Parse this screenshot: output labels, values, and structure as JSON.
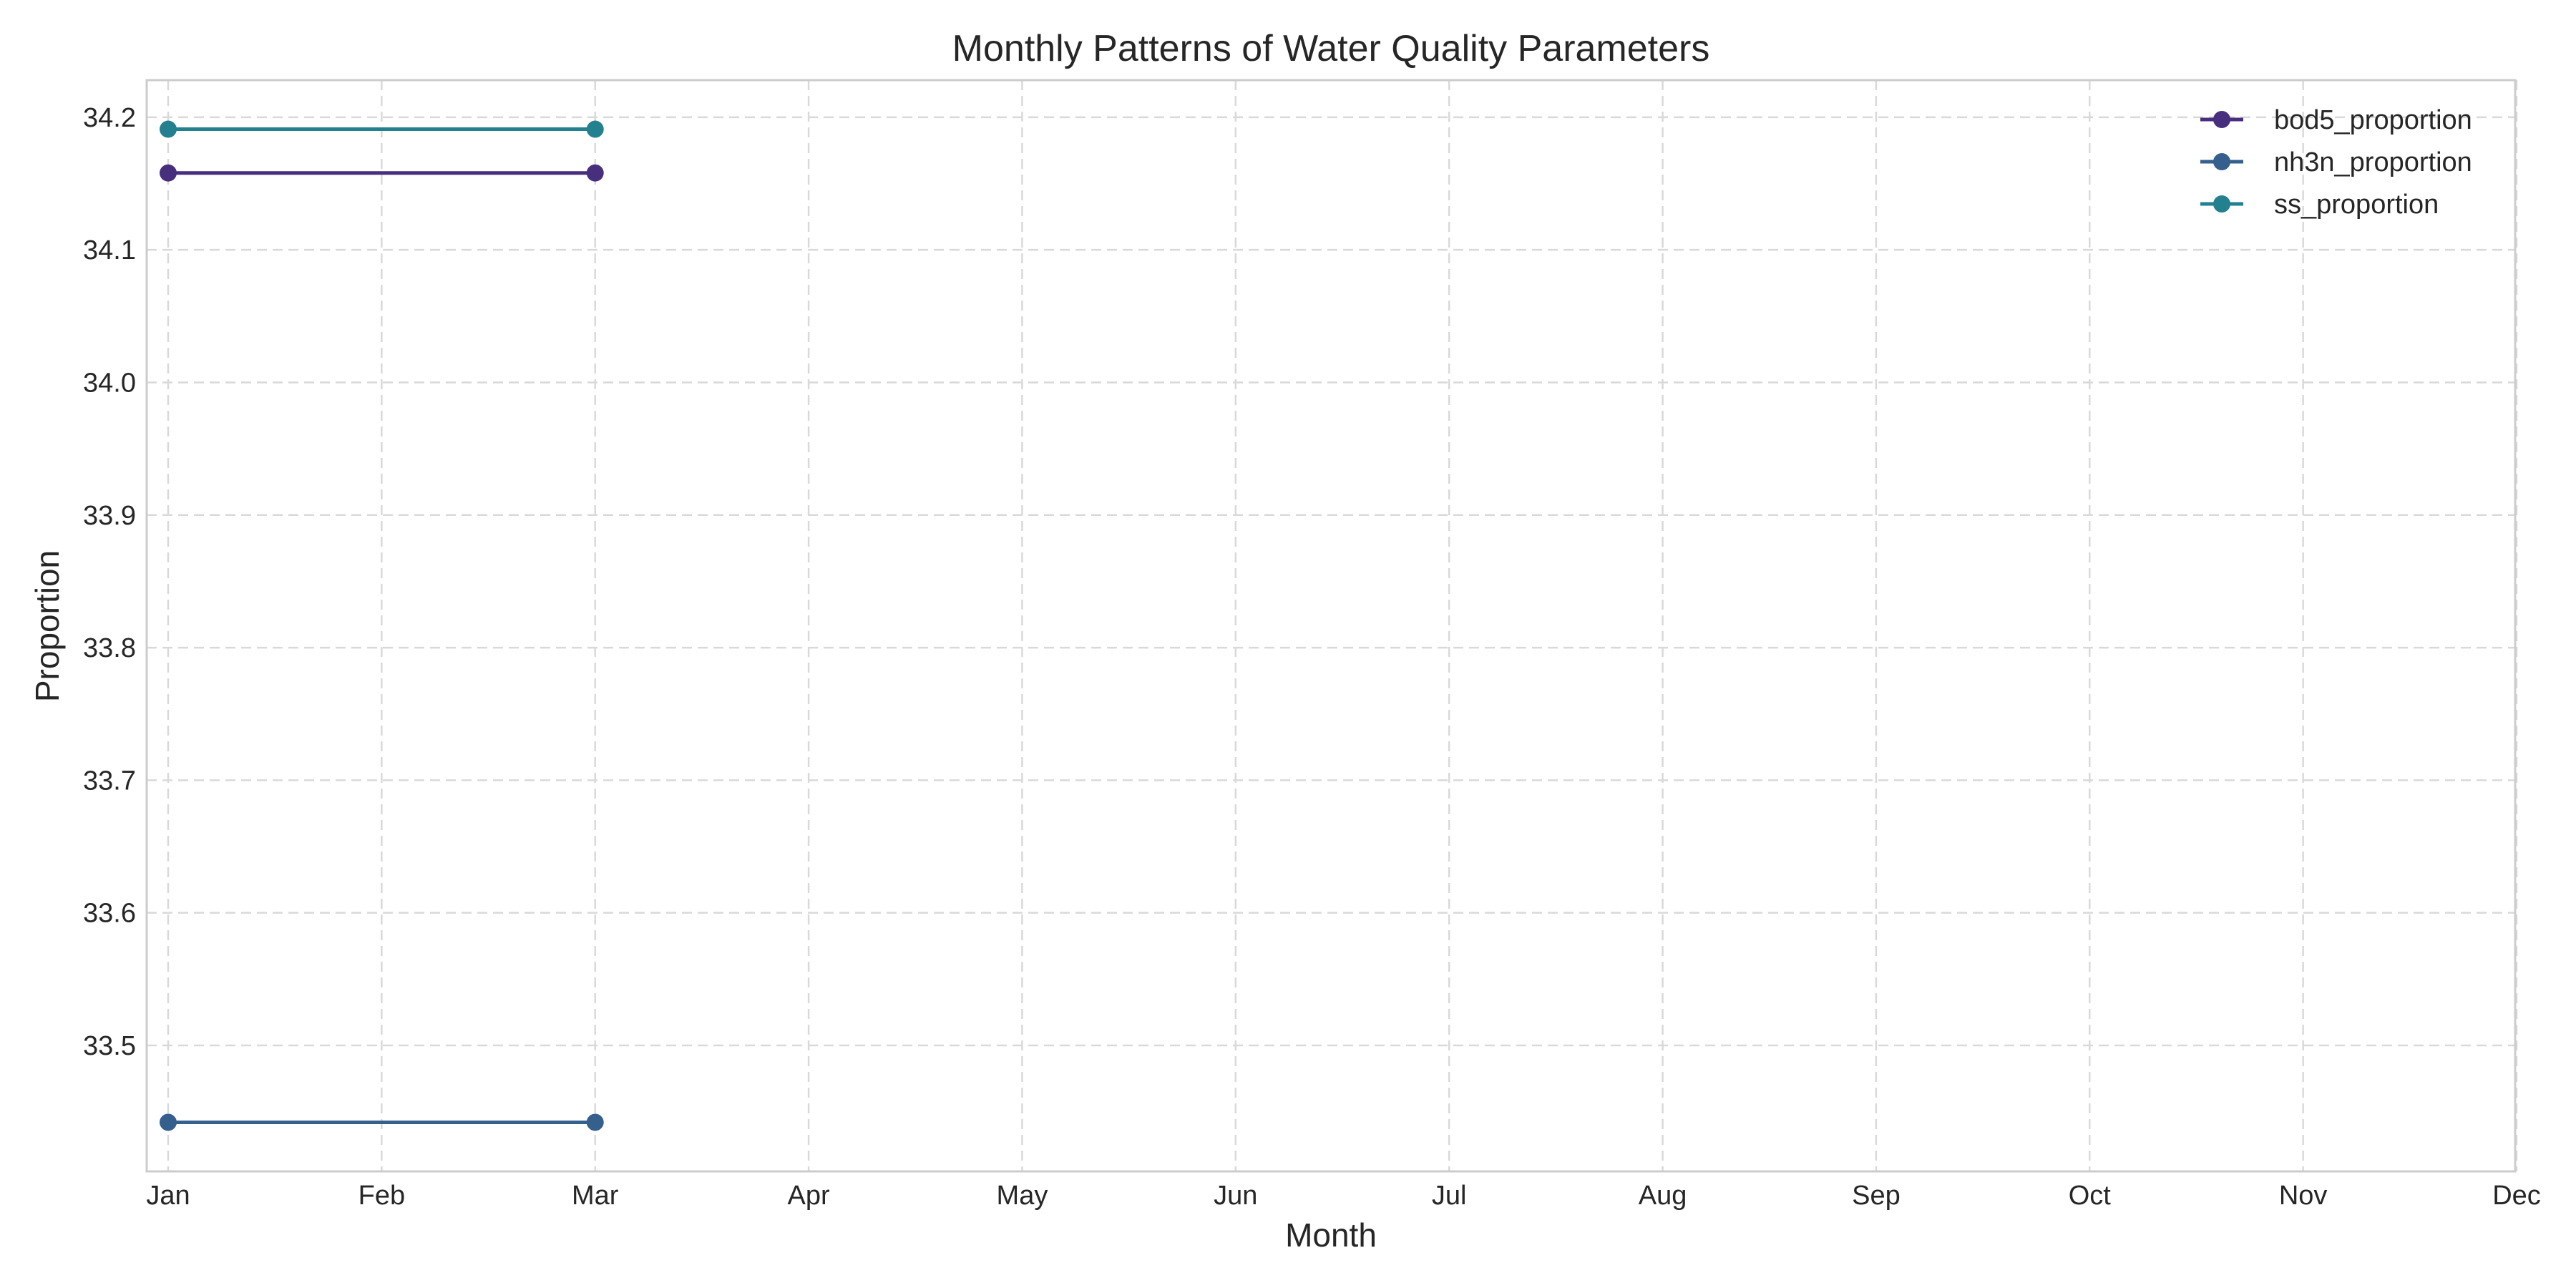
{
  "chart_data": {
    "type": "line",
    "title": "Monthly Patterns of Water Quality Parameters",
    "xlabel": "Month",
    "ylabel": "Proportion",
    "categories": [
      "Jan",
      "Feb",
      "Mar",
      "Apr",
      "May",
      "Jun",
      "Jul",
      "Aug",
      "Sep",
      "Oct",
      "Nov",
      "Dec"
    ],
    "yticks": [
      "33.5",
      "33.6",
      "33.7",
      "33.8",
      "33.9",
      "34.0",
      "34.1",
      "34.2"
    ],
    "ylim": [
      33.405,
      34.228
    ],
    "grid": true,
    "legend_position": "top-right",
    "series": [
      {
        "name": "bod5_proportion",
        "color": "#472f7d",
        "x": [
          "Jan",
          "Mar"
        ],
        "values": [
          34.158,
          34.158
        ]
      },
      {
        "name": "nh3n_proportion",
        "color": "#355f8d",
        "x": [
          "Jan",
          "Mar"
        ],
        "values": [
          33.442,
          33.442
        ]
      },
      {
        "name": "ss_proportion",
        "color": "#23808e",
        "x": [
          "Jan",
          "Mar"
        ],
        "values": [
          34.191,
          34.191
        ]
      }
    ]
  }
}
